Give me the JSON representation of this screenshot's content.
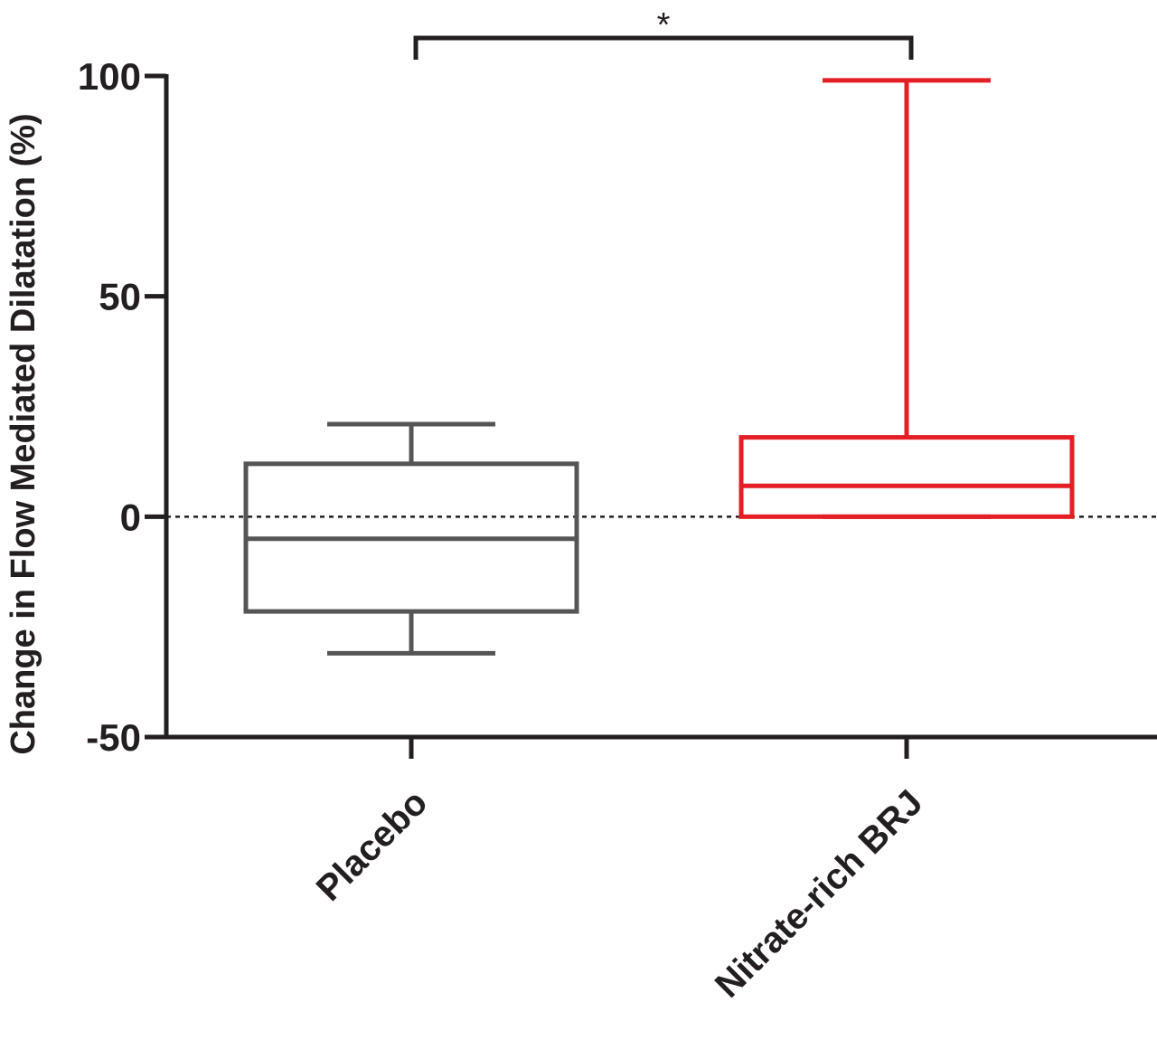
{
  "chart_data": {
    "type": "box",
    "y_label": "Change in Flow Mediated Dilatation (%)",
    "categories": [
      "Placebo",
      "Nitrate-rich BRJ"
    ],
    "boxes": [
      {
        "color": "#555555",
        "min": -31,
        "q1": -21.5,
        "median": -5,
        "q3": 12,
        "max": 21
      },
      {
        "color": "#e31e24",
        "min": 0,
        "q1": 0,
        "median": 7,
        "q3": 18,
        "max": 99
      }
    ],
    "ylim": [
      -50,
      100
    ],
    "yticks": [
      -50,
      0,
      50,
      100
    ],
    "reference_line": 0,
    "annotation": "*"
  }
}
